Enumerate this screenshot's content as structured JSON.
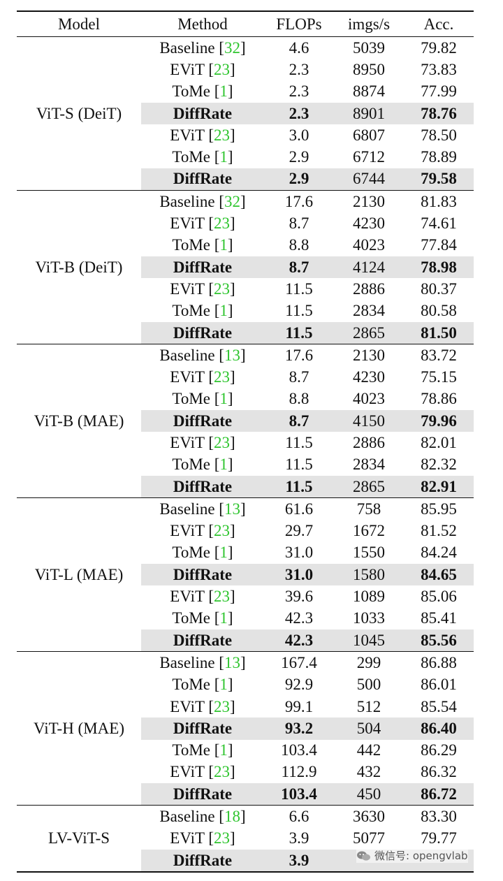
{
  "header": {
    "model": "Model",
    "method": "Method",
    "flops": "FLOPs",
    "imgs": "imgs/s",
    "acc": "Acc."
  },
  "groups": [
    {
      "model": "ViT-S (DeiT)",
      "rows": [
        {
          "method": "Baseline",
          "cite": "32",
          "flops": "4.6",
          "imgs": "5039",
          "acc": "79.82",
          "hl": false
        },
        {
          "method": "EViT",
          "cite": "23",
          "flops": "2.3",
          "imgs": "8950",
          "acc": "73.83",
          "hl": false
        },
        {
          "method": "ToMe",
          "cite": "1",
          "flops": "2.3",
          "imgs": "8874",
          "acc": "77.99",
          "hl": false
        },
        {
          "method": "DiffRate",
          "cite": "",
          "flops": "2.3",
          "imgs": "8901",
          "acc": "78.76",
          "hl": true
        },
        {
          "method": "EViT",
          "cite": "23",
          "flops": "3.0",
          "imgs": "6807",
          "acc": "78.50",
          "hl": false
        },
        {
          "method": "ToMe",
          "cite": "1",
          "flops": "2.9",
          "imgs": "6712",
          "acc": "78.89",
          "hl": false
        },
        {
          "method": "DiffRate",
          "cite": "",
          "flops": "2.9",
          "imgs": "6744",
          "acc": "79.58",
          "hl": true
        }
      ]
    },
    {
      "model": "ViT-B (DeiT)",
      "rows": [
        {
          "method": "Baseline",
          "cite": "32",
          "flops": "17.6",
          "imgs": "2130",
          "acc": "81.83",
          "hl": false
        },
        {
          "method": "EViT",
          "cite": "23",
          "flops": "8.7",
          "imgs": "4230",
          "acc": "74.61",
          "hl": false
        },
        {
          "method": "ToMe",
          "cite": "1",
          "flops": "8.8",
          "imgs": "4023",
          "acc": "77.84",
          "hl": false
        },
        {
          "method": "DiffRate",
          "cite": "",
          "flops": "8.7",
          "imgs": "4124",
          "acc": "78.98",
          "hl": true
        },
        {
          "method": "EViT",
          "cite": "23",
          "flops": "11.5",
          "imgs": "2886",
          "acc": "80.37",
          "hl": false
        },
        {
          "method": "ToMe",
          "cite": "1",
          "flops": "11.5",
          "imgs": "2834",
          "acc": "80.58",
          "hl": false
        },
        {
          "method": "DiffRate",
          "cite": "",
          "flops": "11.5",
          "imgs": "2865",
          "acc": "81.50",
          "hl": true
        }
      ]
    },
    {
      "model": "ViT-B (MAE)",
      "rows": [
        {
          "method": "Baseline",
          "cite": "13",
          "flops": "17.6",
          "imgs": "2130",
          "acc": "83.72",
          "hl": false
        },
        {
          "method": "EViT",
          "cite": "23",
          "flops": "8.7",
          "imgs": "4230",
          "acc": "75.15",
          "hl": false
        },
        {
          "method": "ToMe",
          "cite": "1",
          "flops": "8.8",
          "imgs": "4023",
          "acc": "78.86",
          "hl": false
        },
        {
          "method": "DiffRate",
          "cite": "",
          "flops": "8.7",
          "imgs": "4150",
          "acc": "79.96",
          "hl": true
        },
        {
          "method": "EViT",
          "cite": "23",
          "flops": "11.5",
          "imgs": "2886",
          "acc": "82.01",
          "hl": false
        },
        {
          "method": "ToMe",
          "cite": "1",
          "flops": "11.5",
          "imgs": "2834",
          "acc": "82.32",
          "hl": false
        },
        {
          "method": "DiffRate",
          "cite": "",
          "flops": "11.5",
          "imgs": "2865",
          "acc": "82.91",
          "hl": true
        }
      ]
    },
    {
      "model": "ViT-L (MAE)",
      "rows": [
        {
          "method": "Baseline",
          "cite": "13",
          "flops": "61.6",
          "imgs": "758",
          "acc": "85.95",
          "hl": false
        },
        {
          "method": "EViT",
          "cite": "23",
          "flops": "29.7",
          "imgs": "1672",
          "acc": "81.52",
          "hl": false
        },
        {
          "method": "ToMe",
          "cite": "1",
          "flops": "31.0",
          "imgs": "1550",
          "acc": "84.24",
          "hl": false
        },
        {
          "method": "DiffRate",
          "cite": "",
          "flops": "31.0",
          "imgs": "1580",
          "acc": "84.65",
          "hl": true
        },
        {
          "method": "EViT",
          "cite": "23",
          "flops": "39.6",
          "imgs": "1089",
          "acc": "85.06",
          "hl": false
        },
        {
          "method": "ToMe",
          "cite": "1",
          "flops": "42.3",
          "imgs": "1033",
          "acc": "85.41",
          "hl": false
        },
        {
          "method": "DiffRate",
          "cite": "",
          "flops": "42.3",
          "imgs": "1045",
          "acc": "85.56",
          "hl": true
        }
      ]
    },
    {
      "model": "ViT-H (MAE)",
      "rows": [
        {
          "method": "Baseline",
          "cite": "13",
          "flops": "167.4",
          "imgs": "299",
          "acc": "86.88",
          "hl": false
        },
        {
          "method": "ToMe",
          "cite": "1",
          "flops": "92.9",
          "imgs": "500",
          "acc": "86.01",
          "hl": false
        },
        {
          "method": "EViT",
          "cite": "23",
          "flops": "99.1",
          "imgs": "512",
          "acc": "85.54",
          "hl": false
        },
        {
          "method": "DiffRate",
          "cite": "",
          "flops": "93.2",
          "imgs": "504",
          "acc": "86.40",
          "hl": true
        },
        {
          "method": "ToMe",
          "cite": "1",
          "flops": "103.4",
          "imgs": "442",
          "acc": "86.29",
          "hl": false
        },
        {
          "method": "EViT",
          "cite": "23",
          "flops": "112.9",
          "imgs": "432",
          "acc": "86.32",
          "hl": false
        },
        {
          "method": "DiffRate",
          "cite": "",
          "flops": "103.4",
          "imgs": "450",
          "acc": "86.72",
          "hl": true
        }
      ]
    },
    {
      "model": "LV-ViT-S",
      "rows": [
        {
          "method": "Baseline",
          "cite": "18",
          "flops": "6.6",
          "imgs": "3630",
          "acc": "83.30",
          "hl": false
        },
        {
          "method": "EViT",
          "cite": "23",
          "flops": "3.9",
          "imgs": "5077",
          "acc": "79.77",
          "hl": false
        },
        {
          "method": "DiffRate",
          "cite": "",
          "flops": "3.9",
          "imgs": "",
          "acc": "",
          "hl": true
        }
      ]
    }
  ],
  "watermark": {
    "text": "微信号: opengvlab"
  }
}
